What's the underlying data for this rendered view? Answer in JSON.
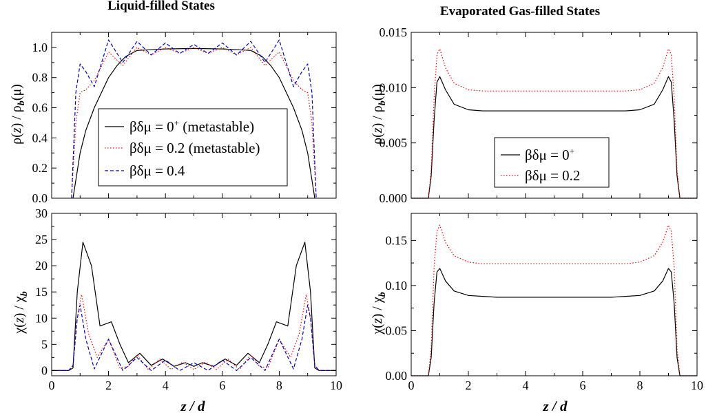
{
  "chart_data": [
    {
      "type": "line",
      "panel": "liquid-density",
      "title": "Liquid-filled States",
      "xlabel": "",
      "ylabel": "ρ(z) / ρb(μ)",
      "xlim": [
        0,
        10
      ],
      "ylim": [
        0,
        1.1
      ],
      "xticks": [
        0,
        2,
        4,
        6,
        8,
        10
      ],
      "yticks": [
        "0.0",
        "0.2",
        "0.4",
        "0.6",
        "0.8",
        "1.0"
      ],
      "legend": "center",
      "series": [
        {
          "name": "βδμ = 0+ (metastable)",
          "color": "#000000",
          "dash": "solid",
          "x": [
            0.75,
            0.85,
            1.0,
            1.2,
            1.5,
            2.0,
            2.3,
            2.6,
            3.0,
            3.5,
            4.0,
            5.0,
            6.0,
            6.5,
            7.0,
            7.4,
            7.7,
            8.0,
            8.5,
            8.8,
            9.0,
            9.15,
            9.25
          ],
          "y": [
            0.0,
            0.12,
            0.3,
            0.45,
            0.6,
            0.8,
            0.88,
            0.94,
            0.98,
            0.985,
            0.99,
            0.993,
            0.99,
            0.985,
            0.98,
            0.94,
            0.88,
            0.8,
            0.6,
            0.45,
            0.3,
            0.12,
            0.0
          ]
        },
        {
          "name": "βδμ = 0.2 (metastable)",
          "color": "#ff0000",
          "dash": "dotted",
          "x": [
            0.7,
            0.85,
            1.0,
            1.2,
            1.5,
            2.0,
            2.5,
            3.0,
            3.5,
            4.0,
            4.5,
            5.0,
            5.5,
            6.0,
            6.5,
            7.0,
            7.5,
            8.0,
            8.5,
            8.8,
            9.0,
            9.15,
            9.3
          ],
          "y": [
            0.0,
            0.5,
            0.7,
            0.72,
            0.78,
            0.97,
            0.88,
            1.0,
            0.95,
            1.0,
            0.96,
            1.0,
            0.96,
            1.0,
            0.95,
            1.0,
            0.88,
            0.97,
            0.78,
            0.72,
            0.7,
            0.5,
            0.0
          ]
        },
        {
          "name": "βδμ = 0.4",
          "color": "#0000cc",
          "dash": "dashed",
          "x": [
            0.7,
            0.85,
            1.0,
            1.2,
            1.5,
            2.0,
            2.5,
            3.0,
            3.5,
            4.0,
            4.5,
            5.0,
            5.5,
            6.0,
            6.5,
            7.0,
            7.5,
            8.0,
            8.5,
            8.8,
            9.0,
            9.15,
            9.3
          ],
          "y": [
            0.0,
            0.7,
            0.89,
            0.84,
            0.74,
            1.05,
            0.9,
            1.04,
            0.95,
            1.03,
            0.96,
            1.02,
            0.96,
            1.03,
            0.95,
            1.04,
            0.9,
            1.05,
            0.74,
            0.84,
            0.89,
            0.7,
            0.0
          ]
        }
      ]
    },
    {
      "type": "line",
      "panel": "liquid-chi",
      "title": "",
      "xlabel": "z / d",
      "ylabel": "χ(z) / χb",
      "xlim": [
        0,
        10
      ],
      "ylim": [
        -1,
        30
      ],
      "xticks": [
        0,
        2,
        4,
        6,
        8,
        10
      ],
      "yticks": [
        "0",
        "5",
        "10",
        "15",
        "20",
        "25",
        "30"
      ],
      "series": [
        {
          "name": "βδμ = 0+ (metastable)",
          "color": "#000000",
          "dash": "solid",
          "x": [
            0.0,
            0.6,
            0.75,
            0.9,
            1.1,
            1.4,
            1.7,
            2.1,
            2.4,
            2.7,
            3.1,
            3.5,
            3.9,
            4.3,
            4.7,
            5.0,
            5.3,
            5.7,
            6.1,
            6.5,
            6.9,
            7.3,
            7.6,
            7.9,
            8.3,
            8.6,
            8.9,
            9.1,
            9.25,
            9.4,
            10.0
          ],
          "y": [
            0.0,
            0.0,
            0.5,
            15,
            24.5,
            20,
            8.5,
            9.3,
            5,
            1.5,
            3.3,
            1.0,
            2.2,
            0.8,
            1.5,
            0.8,
            1.5,
            0.8,
            2.2,
            1.0,
            3.3,
            1.5,
            5,
            9.3,
            8.5,
            20,
            24.5,
            15,
            0.5,
            0.0,
            0.0
          ]
        },
        {
          "name": "βδμ = 0.2 (metastable)",
          "color": "#ff0000",
          "dash": "dotted",
          "x": [
            0.0,
            0.6,
            0.75,
            0.9,
            1.05,
            1.3,
            1.6,
            2.0,
            2.4,
            2.7,
            3.0,
            3.4,
            3.8,
            4.2,
            4.6,
            5.0,
            5.4,
            5.8,
            6.2,
            6.6,
            7.0,
            7.3,
            7.6,
            8.0,
            8.4,
            8.7,
            8.95,
            9.1,
            9.25,
            9.4,
            10.0
          ],
          "y": [
            0.0,
            0.0,
            1,
            10,
            14.5,
            7,
            2.5,
            6,
            0.5,
            0.8,
            3,
            0.2,
            2.2,
            0.2,
            1.6,
            0.2,
            1.6,
            0.2,
            2.2,
            0.2,
            3,
            0.8,
            0.5,
            6,
            2.5,
            7,
            14.5,
            10,
            1,
            0.0,
            0.0
          ]
        },
        {
          "name": "βδμ = 0.4",
          "color": "#0000cc",
          "dash": "dashed",
          "x": [
            0.0,
            0.6,
            0.75,
            0.9,
            1.0,
            1.2,
            1.5,
            2.0,
            2.5,
            3.0,
            3.5,
            4.0,
            4.5,
            5.0,
            5.5,
            6.0,
            6.5,
            7.0,
            7.5,
            8.0,
            8.5,
            8.8,
            9.0,
            9.1,
            9.25,
            9.4,
            10.0
          ],
          "y": [
            0.0,
            0.0,
            1,
            10,
            12.5,
            6,
            0.3,
            6,
            0,
            2.5,
            0,
            2,
            0,
            1.5,
            0,
            2,
            0,
            2.5,
            0,
            6,
            0.3,
            6,
            12.5,
            10,
            1,
            0.0,
            0.0
          ]
        }
      ]
    },
    {
      "type": "line",
      "panel": "gas-density",
      "title": "Evaporated Gas-filled States",
      "xlabel": "",
      "ylabel": "ρ(z) / ρb(μ)",
      "xlim": [
        0,
        10
      ],
      "ylim": [
        0,
        0.015
      ],
      "xticks": [
        0,
        2,
        4,
        6,
        8,
        10
      ],
      "yticks": [
        "0.000",
        "0.005",
        "0.010",
        "0.015"
      ],
      "legend": "lower-center",
      "series": [
        {
          "name": "βδμ = 0+",
          "color": "#000000",
          "dash": "solid",
          "x": [
            0.0,
            0.6,
            0.7,
            0.8,
            0.9,
            1.0,
            1.2,
            1.5,
            2.0,
            2.5,
            3.0,
            5.0,
            7.0,
            7.5,
            8.0,
            8.5,
            8.8,
            9.0,
            9.1,
            9.2,
            9.3,
            9.4,
            10.0
          ],
          "y": [
            0,
            0,
            0.002,
            0.007,
            0.0105,
            0.011,
            0.0098,
            0.0085,
            0.008,
            0.0079,
            0.0079,
            0.0079,
            0.0079,
            0.0079,
            0.008,
            0.0085,
            0.0098,
            0.011,
            0.0105,
            0.007,
            0.002,
            0,
            0
          ]
        },
        {
          "name": "βδμ = 0.2",
          "color": "#ff0000",
          "dash": "dotted",
          "x": [
            0.0,
            0.6,
            0.7,
            0.8,
            0.9,
            1.0,
            1.2,
            1.5,
            2.0,
            2.5,
            3.0,
            5.0,
            7.0,
            7.5,
            8.0,
            8.5,
            8.8,
            9.0,
            9.1,
            9.2,
            9.3,
            9.4,
            10.0
          ],
          "y": [
            0,
            0,
            0.0025,
            0.009,
            0.013,
            0.0135,
            0.0118,
            0.0104,
            0.0098,
            0.0097,
            0.0097,
            0.0097,
            0.0097,
            0.0097,
            0.0098,
            0.0104,
            0.0118,
            0.0135,
            0.013,
            0.009,
            0.0025,
            0,
            0
          ]
        }
      ]
    },
    {
      "type": "line",
      "panel": "gas-chi",
      "title": "",
      "xlabel": "z / d",
      "ylabel": "χ(z) / χb",
      "xlim": [
        0,
        10
      ],
      "ylim": [
        0,
        0.18
      ],
      "xticks": [
        0,
        2,
        4,
        6,
        8,
        10
      ],
      "yticks": [
        "0.00",
        "0.05",
        "0.10",
        "0.15"
      ],
      "series": [
        {
          "name": "βδμ = 0+",
          "color": "#000000",
          "dash": "solid",
          "x": [
            0.0,
            0.6,
            0.7,
            0.8,
            0.9,
            1.0,
            1.2,
            1.5,
            2.0,
            2.5,
            3.0,
            5.0,
            7.0,
            7.5,
            8.0,
            8.5,
            8.8,
            9.0,
            9.1,
            9.2,
            9.3,
            9.4,
            10.0
          ],
          "y": [
            0,
            0,
            0.02,
            0.08,
            0.115,
            0.119,
            0.105,
            0.094,
            0.089,
            0.088,
            0.087,
            0.087,
            0.087,
            0.088,
            0.089,
            0.094,
            0.105,
            0.119,
            0.115,
            0.08,
            0.02,
            0,
            0
          ]
        },
        {
          "name": "βδμ = 0.2",
          "color": "#ff0000",
          "dash": "dotted",
          "x": [
            0.0,
            0.6,
            0.7,
            0.8,
            0.9,
            1.0,
            1.2,
            1.5,
            2.0,
            2.5,
            3.0,
            5.0,
            7.0,
            7.5,
            8.0,
            8.5,
            8.8,
            9.0,
            9.1,
            9.2,
            9.3,
            9.4,
            10.0
          ],
          "y": [
            0,
            0,
            0.03,
            0.12,
            0.16,
            0.167,
            0.148,
            0.133,
            0.126,
            0.124,
            0.124,
            0.124,
            0.124,
            0.124,
            0.126,
            0.133,
            0.148,
            0.167,
            0.16,
            0.12,
            0.03,
            0,
            0
          ]
        }
      ]
    }
  ]
}
